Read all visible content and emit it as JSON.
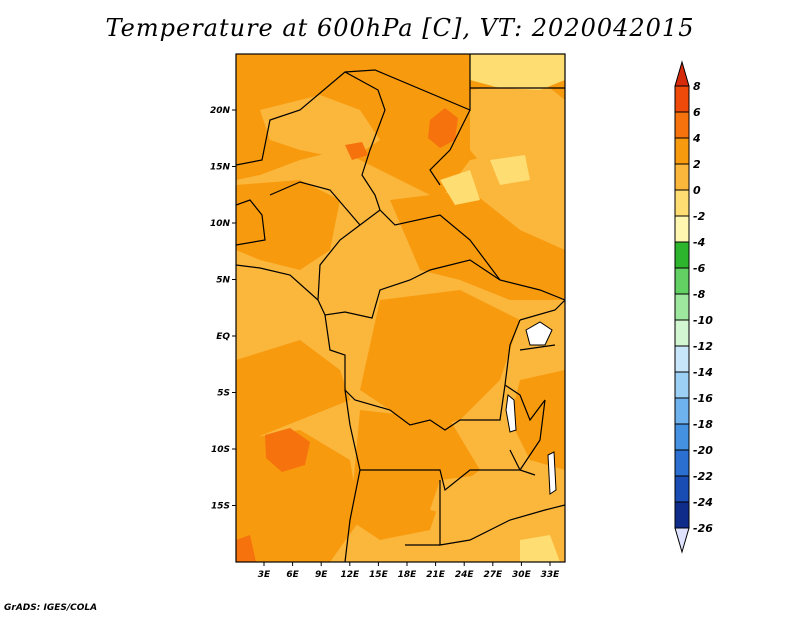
{
  "title": "Temperature at 600hPa [C], VT: 2020042015",
  "credit": "GrADS: IGES/COLA",
  "map": {
    "lat_labels": [
      "20N",
      "15N",
      "10N",
      "5N",
      "EQ",
      "5S",
      "10S",
      "15S"
    ],
    "lon_labels": [
      "3E",
      "6E",
      "9E",
      "12E",
      "15E",
      "18E",
      "21E",
      "24E",
      "27E",
      "30E",
      "33E"
    ]
  },
  "colorbar": {
    "levels": [
      "8",
      "6",
      "4",
      "2",
      "0",
      "-2",
      "-4",
      "-6",
      "-8",
      "-10",
      "-12",
      "-14",
      "-16",
      "-18",
      "-20",
      "-22",
      "-24",
      "-26"
    ],
    "colors": [
      "#d62b0b",
      "#f04a0a",
      "#f5720d",
      "#f89a0e",
      "#fbb63c",
      "#fedd72",
      "#fff6b0",
      "#2eb52e",
      "#62d062",
      "#9ee79e",
      "#d2f5d2",
      "#c8e6fa",
      "#9cd0f5",
      "#6eb2ee",
      "#4591e1",
      "#2b6fd1",
      "#1a4db3",
      "#0f2c8a",
      "#0a1a5c",
      "#dfe3ff"
    ]
  }
}
